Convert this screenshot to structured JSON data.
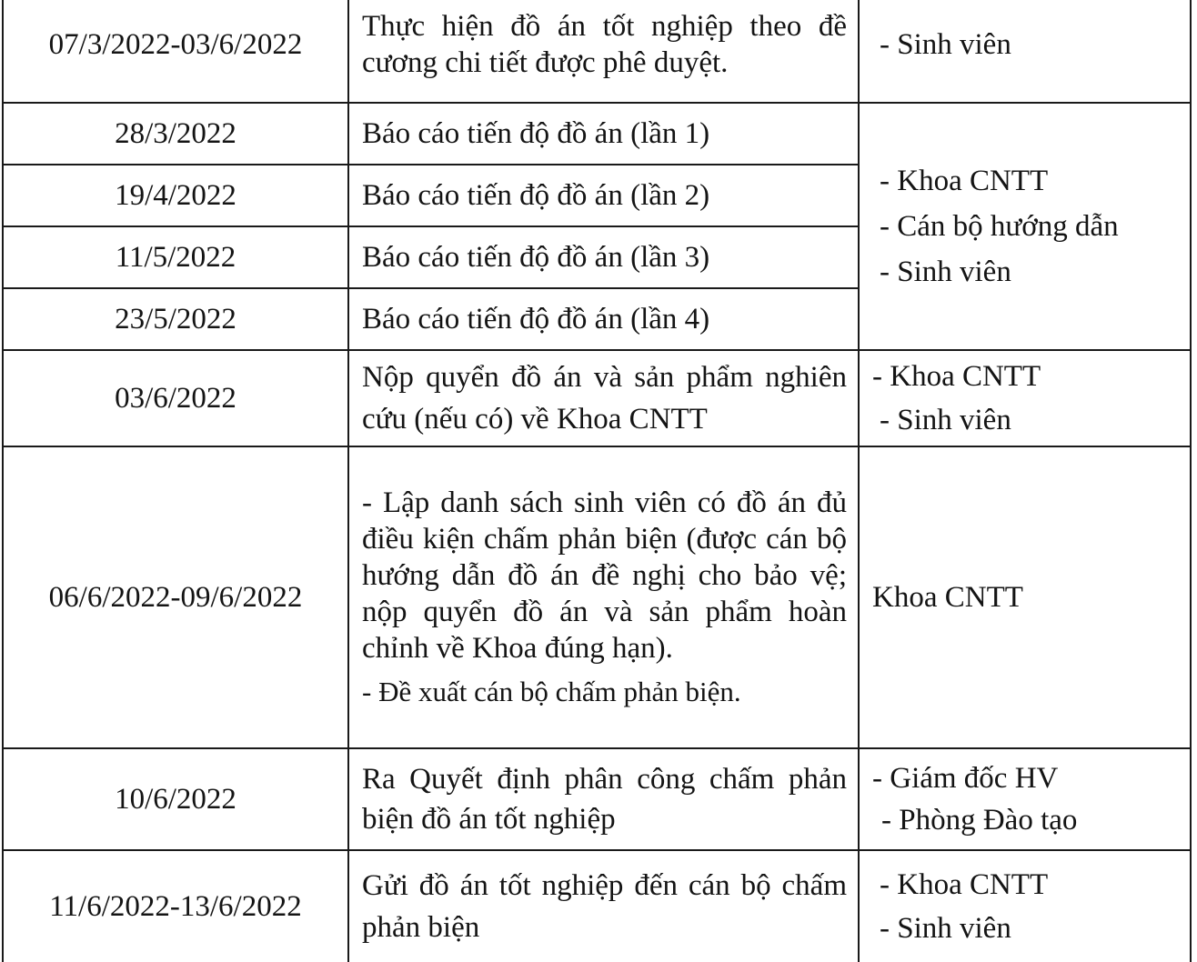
{
  "schedule": {
    "rows": [
      {
        "date": "07/3/2022-03/6/2022",
        "task": [
          "Thực hiện đồ án tốt nghiệp theo đề cương chi tiết được phê duyệt."
        ],
        "responsible": [
          "- Sinh viên"
        ]
      },
      {
        "date": "28/3/2022",
        "task": [
          "Báo cáo tiến độ đồ án (lần 1)"
        ],
        "responsible": [
          "- Khoa CNTT",
          "- Cán bộ hướng dẫn",
          "- Sinh viên"
        ]
      },
      {
        "date": "19/4/2022",
        "task": [
          "Báo cáo tiến độ đồ án (lần 2)"
        ]
      },
      {
        "date": "11/5/2022",
        "task": [
          "Báo cáo tiến độ đồ án (lần 3)"
        ]
      },
      {
        "date": "23/5/2022",
        "task": [
          "Báo cáo tiến độ đồ án (lần 4)"
        ]
      },
      {
        "date": "03/6/2022",
        "task": [
          "Nộp quyển đồ án và sản phẩm nghiên cứu (nếu có) về Khoa CNTT"
        ],
        "responsible": [
          "- Khoa CNTT",
          "- Sinh viên"
        ]
      },
      {
        "date": "06/6/2022-09/6/2022",
        "task": [
          "- Lập danh sách sinh viên có đồ án đủ điều kiện chấm phản biện (được cán bộ hướng dẫn đồ án đề nghị cho bảo vệ; nộp quyển đồ án và sản phẩm hoàn chỉnh về Khoa đúng hạn).",
          "- Đề xuất cán bộ chấm phản biện."
        ],
        "responsible": [
          "Khoa CNTT"
        ]
      },
      {
        "date": "10/6/2022",
        "task": [
          "Ra Quyết định phân công chấm phản biện đồ án tốt nghiệp"
        ],
        "responsible": [
          "- Giám đốc HV",
          "- Phòng Đào tạo"
        ]
      },
      {
        "date": "11/6/2022-13/6/2022",
        "task": [
          "Gửi đồ án tốt nghiệp đến cán bộ chấm phản biện"
        ],
        "responsible": [
          "- Khoa CNTT",
          "- Sinh viên"
        ]
      }
    ]
  }
}
